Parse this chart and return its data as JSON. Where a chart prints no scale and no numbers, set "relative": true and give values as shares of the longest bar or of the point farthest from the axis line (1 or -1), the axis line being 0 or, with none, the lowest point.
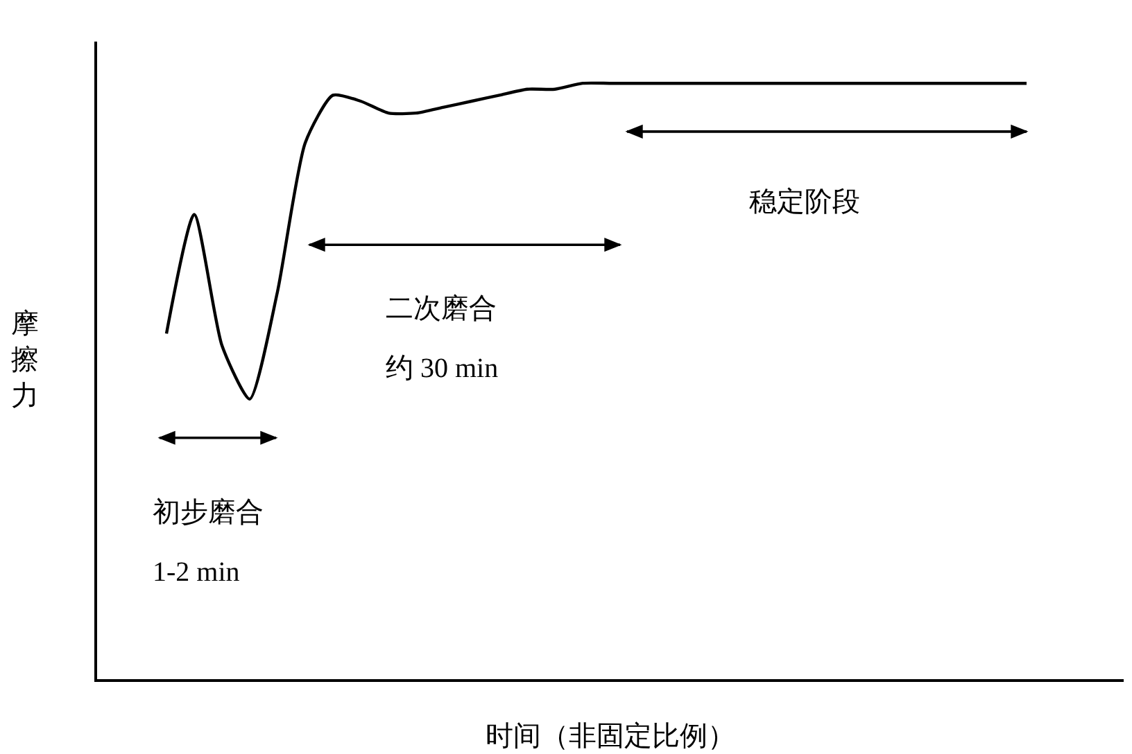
{
  "chart_data": {
    "type": "line",
    "relative": true,
    "xlabel": "时间（非固定比例）",
    "ylabel": "摩擦力",
    "categories": [
      null,
      null,
      null,
      null,
      null,
      null,
      null,
      null,
      null,
      null,
      null,
      null,
      null,
      null,
      null,
      null,
      null,
      null,
      null,
      null,
      null,
      null,
      null,
      null,
      null,
      null,
      null,
      null,
      null,
      null,
      null,
      null
    ],
    "series": [
      {
        "color": "#000000",
        "values": [
          0.58,
          0.78,
          0.56,
          0.47,
          0.65,
          0.9,
          0.98,
          0.97,
          0.95,
          0.95,
          0.96,
          0.97,
          0.98,
          0.99,
          0.99,
          1,
          1,
          1,
          1,
          1,
          1,
          1,
          1,
          1,
          1,
          1,
          1,
          1,
          1,
          1,
          1,
          1
        ]
      }
    ],
    "annotations": [
      "初步磨合",
      "1-2 min",
      "二次磨合",
      "约 30 min",
      "稳定阶段"
    ],
    "marker": "none",
    "line_style": "solid"
  }
}
